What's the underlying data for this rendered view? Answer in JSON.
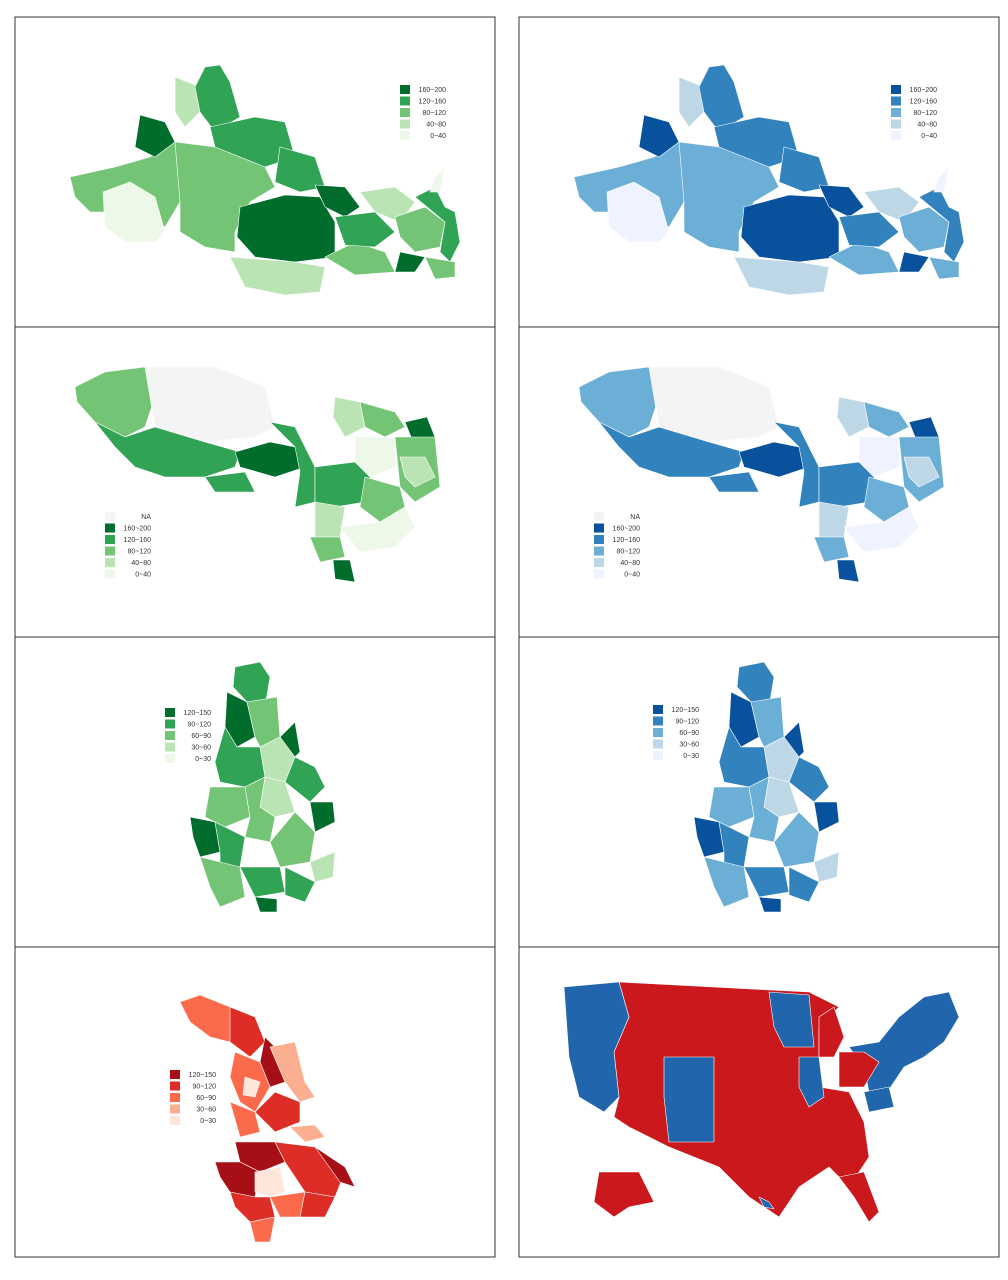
{
  "panels": [
    {
      "legend": [
        {
          "label": "160~200",
          "color": "#006d2c"
        },
        {
          "label": "120~160",
          "color": "#31a354"
        },
        {
          "label": "80~120",
          "color": "#74c476"
        },
        {
          "label": "40~80",
          "color": "#bae4b3"
        },
        {
          "label": "0~40",
          "color": "#edf8e9"
        }
      ]
    },
    {
      "legend": [
        {
          "label": "160~200",
          "color": "#08519c"
        },
        {
          "label": "120~160",
          "color": "#3182bd"
        },
        {
          "label": "80~120",
          "color": "#6baed6"
        },
        {
          "label": "40~80",
          "color": "#bdd7e7"
        },
        {
          "label": "0~40",
          "color": "#eff3ff"
        }
      ]
    },
    {
      "legend": [
        {
          "label": "NA",
          "color": "#f4f4f4"
        },
        {
          "label": "160~200",
          "color": "#006d2c"
        },
        {
          "label": "120~160",
          "color": "#31a354"
        },
        {
          "label": "80~120",
          "color": "#74c476"
        },
        {
          "label": "40~80",
          "color": "#bae4b3"
        },
        {
          "label": "0~40",
          "color": "#edf8e9"
        }
      ]
    },
    {
      "legend": [
        {
          "label": "NA",
          "color": "#f4f4f4"
        },
        {
          "label": "160~200",
          "color": "#08519c"
        },
        {
          "label": "120~160",
          "color": "#3182bd"
        },
        {
          "label": "80~120",
          "color": "#6baed6"
        },
        {
          "label": "40~80",
          "color": "#bdd7e7"
        },
        {
          "label": "0~40",
          "color": "#eff3ff"
        }
      ]
    },
    {
      "legend": [
        {
          "label": "120~150",
          "color": "#006d2c"
        },
        {
          "label": "90~120",
          "color": "#31a354"
        },
        {
          "label": "60~90",
          "color": "#74c476"
        },
        {
          "label": "30~60",
          "color": "#bae4b3"
        },
        {
          "label": "0~30",
          "color": "#edf8e9"
        }
      ]
    },
    {
      "legend": [
        {
          "label": "120~150",
          "color": "#08519c"
        },
        {
          "label": "90~120",
          "color": "#3182bd"
        },
        {
          "label": "60~90",
          "color": "#6baed6"
        },
        {
          "label": "30~60",
          "color": "#bdd7e7"
        },
        {
          "label": "0~30",
          "color": "#eff3ff"
        }
      ]
    },
    {
      "legend": [
        {
          "label": "120~150",
          "color": "#a50f15"
        },
        {
          "label": "90~120",
          "color": "#de2d26"
        },
        {
          "label": "60~90",
          "color": "#fb6a4a"
        },
        {
          "label": "30~60",
          "color": "#fcae91"
        },
        {
          "label": "0~30",
          "color": "#fee5d9"
        }
      ]
    },
    {
      "colors": [
        "#2166ac",
        "#cb181d"
      ]
    }
  ]
}
